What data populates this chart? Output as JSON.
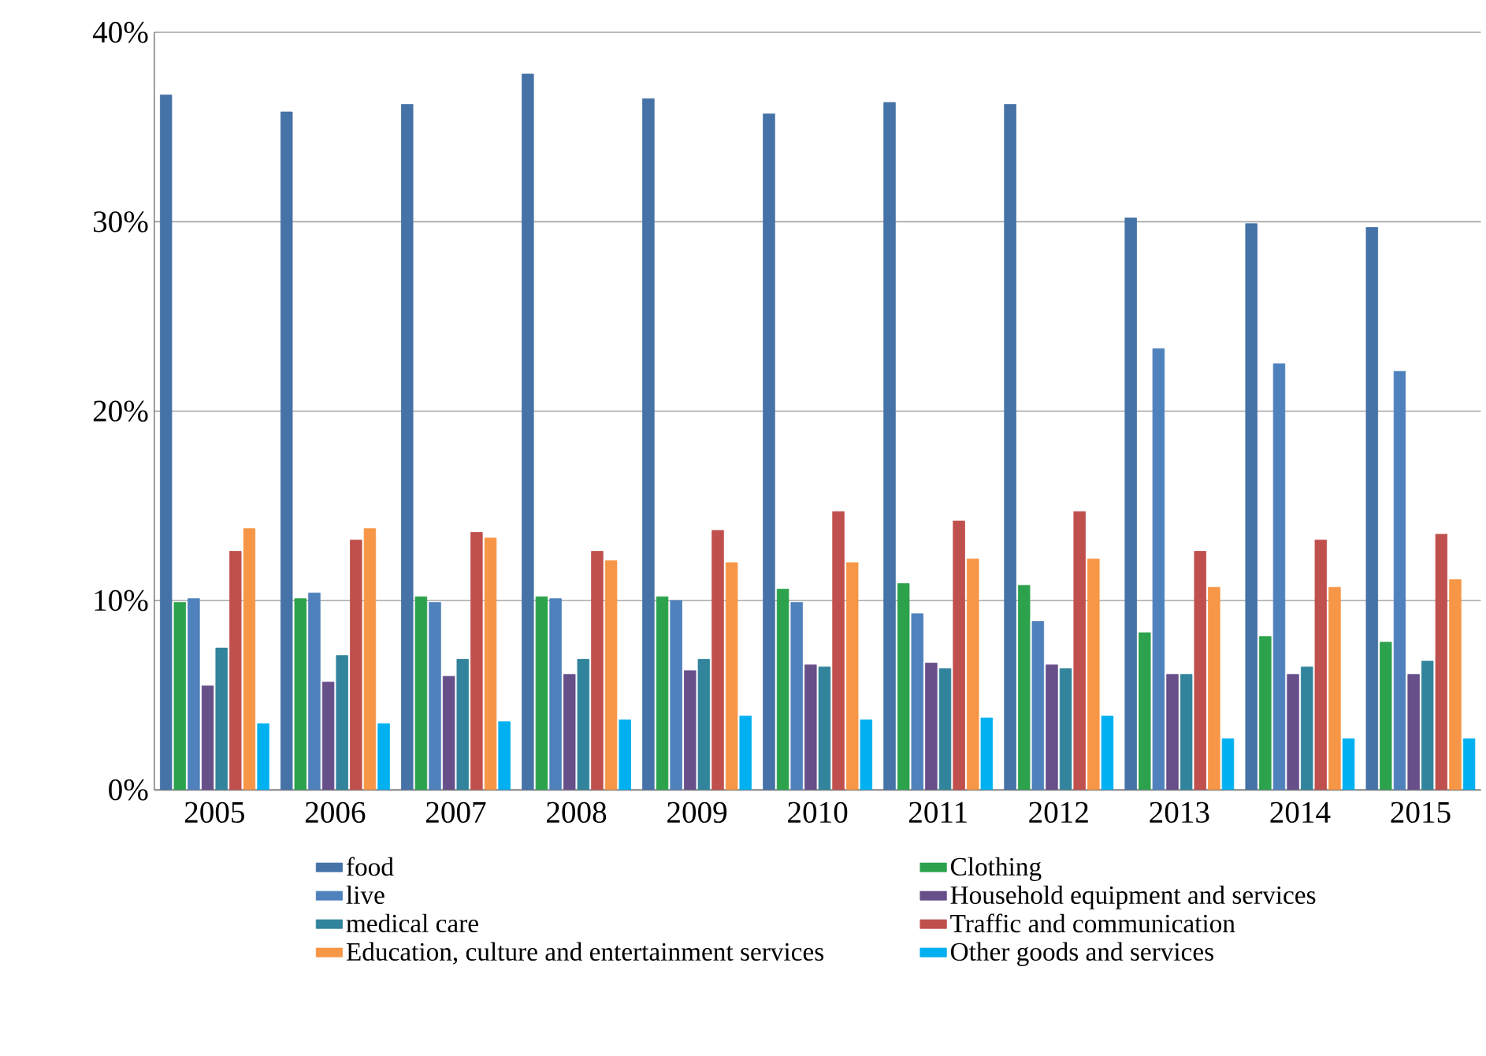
{
  "chart_data": {
    "type": "bar",
    "categories": [
      "2005",
      "2006",
      "2007",
      "2008",
      "2009",
      "2010",
      "2011",
      "2012",
      "2013",
      "2014",
      "2015"
    ],
    "series": [
      {
        "name": "food",
        "color": "#4572a7",
        "values": [
          36.7,
          35.8,
          36.2,
          37.8,
          36.5,
          35.7,
          36.3,
          36.2,
          30.2,
          29.9,
          29.7
        ]
      },
      {
        "name": "Clothing",
        "color": "#2ca24c",
        "values": [
          9.9,
          10.1,
          10.2,
          10.2,
          10.2,
          10.6,
          10.9,
          10.8,
          8.3,
          8.1,
          7.8
        ]
      },
      {
        "name": "live",
        "color": "#4f81bd",
        "values": [
          10.1,
          10.4,
          9.9,
          10.1,
          10.0,
          9.9,
          9.3,
          8.9,
          23.3,
          22.5,
          22.1
        ]
      },
      {
        "name": "Household equipment and services",
        "color": "#674f8a",
        "values": [
          5.5,
          5.7,
          6.0,
          6.1,
          6.3,
          6.6,
          6.7,
          6.6,
          6.1,
          6.1,
          6.1
        ]
      },
      {
        "name": "medical care",
        "color": "#31849b",
        "values": [
          7.5,
          7.1,
          6.9,
          6.9,
          6.9,
          6.5,
          6.4,
          6.4,
          6.1,
          6.5,
          6.8
        ]
      },
      {
        "name": "Traffic and communication",
        "color": "#c0504d",
        "values": [
          12.6,
          13.2,
          13.6,
          12.6,
          13.7,
          14.7,
          14.2,
          14.7,
          12.6,
          13.2,
          13.5
        ]
      },
      {
        "name": "Education, culture and entertainment services",
        "color": "#f79646",
        "values": [
          13.8,
          13.8,
          13.3,
          12.1,
          12.0,
          12.0,
          12.2,
          12.2,
          10.7,
          10.7,
          11.1
        ]
      },
      {
        "name": "Other goods and services",
        "color": "#00b0f0",
        "values": [
          3.5,
          3.5,
          3.6,
          3.7,
          3.9,
          3.7,
          3.8,
          3.9,
          2.7,
          2.7,
          2.7
        ]
      }
    ],
    "ylim": [
      0,
      40
    ],
    "yticks": [
      {
        "value": 0,
        "label": "0%"
      },
      {
        "value": 10,
        "label": "10%"
      },
      {
        "value": 20,
        "label": "20%"
      },
      {
        "value": 30,
        "label": "30%"
      },
      {
        "value": 40,
        "label": "40%"
      }
    ],
    "grid": "y",
    "legend": "bottom"
  }
}
